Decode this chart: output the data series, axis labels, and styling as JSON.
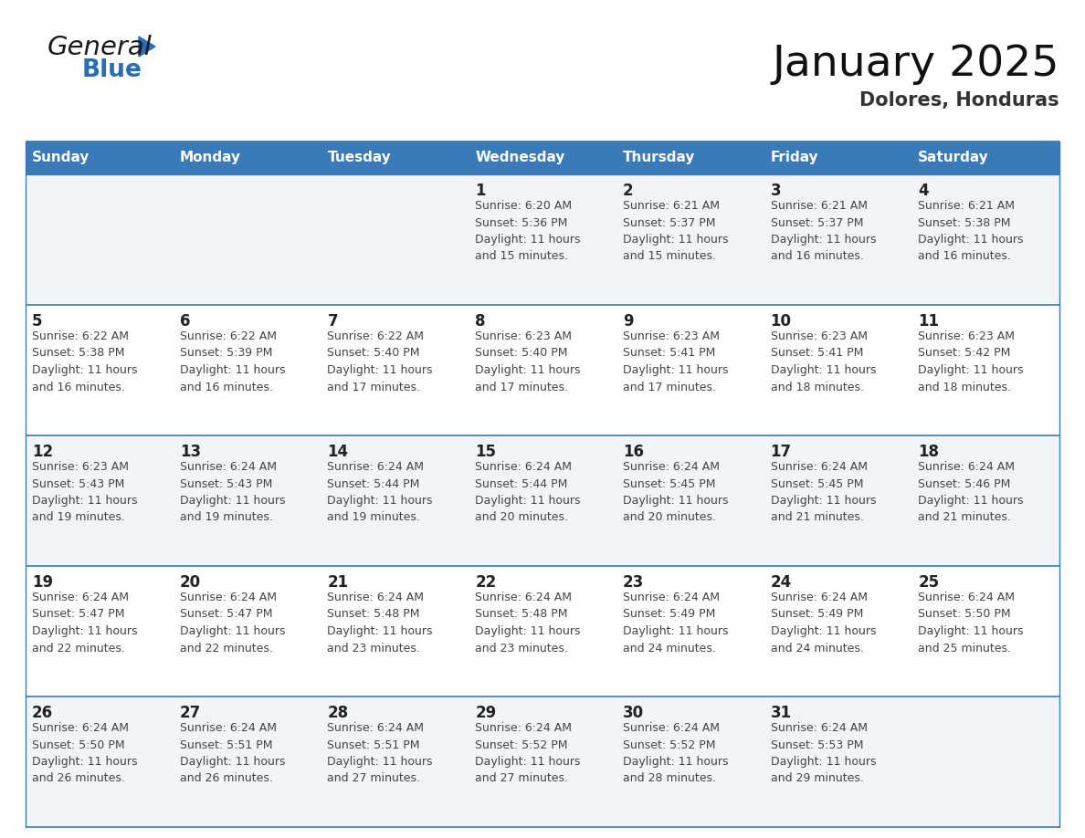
{
  "title": "January 2025",
  "subtitle": "Dolores, Honduras",
  "header_bg": "#3a7ab8",
  "header_text": "#ffffff",
  "day_names": [
    "Sunday",
    "Monday",
    "Tuesday",
    "Wednesday",
    "Thursday",
    "Friday",
    "Saturday"
  ],
  "row_even_bg": "#f2f5f8",
  "row_odd_bg": "#ffffff",
  "border_color": "#3a7ab8",
  "date_color": "#222222",
  "info_color": "#444444",
  "title_color": "#111111",
  "subtitle_color": "#333333",
  "logo_general_color": "#1a1a1a",
  "logo_blue_color": "#2a6db5",
  "calendar": [
    [
      {
        "day": null,
        "info": null
      },
      {
        "day": null,
        "info": null
      },
      {
        "day": null,
        "info": null
      },
      {
        "day": 1,
        "info": "Sunrise: 6:20 AM\nSunset: 5:36 PM\nDaylight: 11 hours\nand 15 minutes."
      },
      {
        "day": 2,
        "info": "Sunrise: 6:21 AM\nSunset: 5:37 PM\nDaylight: 11 hours\nand 15 minutes."
      },
      {
        "day": 3,
        "info": "Sunrise: 6:21 AM\nSunset: 5:37 PM\nDaylight: 11 hours\nand 16 minutes."
      },
      {
        "day": 4,
        "info": "Sunrise: 6:21 AM\nSunset: 5:38 PM\nDaylight: 11 hours\nand 16 minutes."
      }
    ],
    [
      {
        "day": 5,
        "info": "Sunrise: 6:22 AM\nSunset: 5:38 PM\nDaylight: 11 hours\nand 16 minutes."
      },
      {
        "day": 6,
        "info": "Sunrise: 6:22 AM\nSunset: 5:39 PM\nDaylight: 11 hours\nand 16 minutes."
      },
      {
        "day": 7,
        "info": "Sunrise: 6:22 AM\nSunset: 5:40 PM\nDaylight: 11 hours\nand 17 minutes."
      },
      {
        "day": 8,
        "info": "Sunrise: 6:23 AM\nSunset: 5:40 PM\nDaylight: 11 hours\nand 17 minutes."
      },
      {
        "day": 9,
        "info": "Sunrise: 6:23 AM\nSunset: 5:41 PM\nDaylight: 11 hours\nand 17 minutes."
      },
      {
        "day": 10,
        "info": "Sunrise: 6:23 AM\nSunset: 5:41 PM\nDaylight: 11 hours\nand 18 minutes."
      },
      {
        "day": 11,
        "info": "Sunrise: 6:23 AM\nSunset: 5:42 PM\nDaylight: 11 hours\nand 18 minutes."
      }
    ],
    [
      {
        "day": 12,
        "info": "Sunrise: 6:23 AM\nSunset: 5:43 PM\nDaylight: 11 hours\nand 19 minutes."
      },
      {
        "day": 13,
        "info": "Sunrise: 6:24 AM\nSunset: 5:43 PM\nDaylight: 11 hours\nand 19 minutes."
      },
      {
        "day": 14,
        "info": "Sunrise: 6:24 AM\nSunset: 5:44 PM\nDaylight: 11 hours\nand 19 minutes."
      },
      {
        "day": 15,
        "info": "Sunrise: 6:24 AM\nSunset: 5:44 PM\nDaylight: 11 hours\nand 20 minutes."
      },
      {
        "day": 16,
        "info": "Sunrise: 6:24 AM\nSunset: 5:45 PM\nDaylight: 11 hours\nand 20 minutes."
      },
      {
        "day": 17,
        "info": "Sunrise: 6:24 AM\nSunset: 5:45 PM\nDaylight: 11 hours\nand 21 minutes."
      },
      {
        "day": 18,
        "info": "Sunrise: 6:24 AM\nSunset: 5:46 PM\nDaylight: 11 hours\nand 21 minutes."
      }
    ],
    [
      {
        "day": 19,
        "info": "Sunrise: 6:24 AM\nSunset: 5:47 PM\nDaylight: 11 hours\nand 22 minutes."
      },
      {
        "day": 20,
        "info": "Sunrise: 6:24 AM\nSunset: 5:47 PM\nDaylight: 11 hours\nand 22 minutes."
      },
      {
        "day": 21,
        "info": "Sunrise: 6:24 AM\nSunset: 5:48 PM\nDaylight: 11 hours\nand 23 minutes."
      },
      {
        "day": 22,
        "info": "Sunrise: 6:24 AM\nSunset: 5:48 PM\nDaylight: 11 hours\nand 23 minutes."
      },
      {
        "day": 23,
        "info": "Sunrise: 6:24 AM\nSunset: 5:49 PM\nDaylight: 11 hours\nand 24 minutes."
      },
      {
        "day": 24,
        "info": "Sunrise: 6:24 AM\nSunset: 5:49 PM\nDaylight: 11 hours\nand 24 minutes."
      },
      {
        "day": 25,
        "info": "Sunrise: 6:24 AM\nSunset: 5:50 PM\nDaylight: 11 hours\nand 25 minutes."
      }
    ],
    [
      {
        "day": 26,
        "info": "Sunrise: 6:24 AM\nSunset: 5:50 PM\nDaylight: 11 hours\nand 26 minutes."
      },
      {
        "day": 27,
        "info": "Sunrise: 6:24 AM\nSunset: 5:51 PM\nDaylight: 11 hours\nand 26 minutes."
      },
      {
        "day": 28,
        "info": "Sunrise: 6:24 AM\nSunset: 5:51 PM\nDaylight: 11 hours\nand 27 minutes."
      },
      {
        "day": 29,
        "info": "Sunrise: 6:24 AM\nSunset: 5:52 PM\nDaylight: 11 hours\nand 27 minutes."
      },
      {
        "day": 30,
        "info": "Sunrise: 6:24 AM\nSunset: 5:52 PM\nDaylight: 11 hours\nand 28 minutes."
      },
      {
        "day": 31,
        "info": "Sunrise: 6:24 AM\nSunset: 5:53 PM\nDaylight: 11 hours\nand 29 minutes."
      },
      {
        "day": null,
        "info": null
      }
    ]
  ]
}
